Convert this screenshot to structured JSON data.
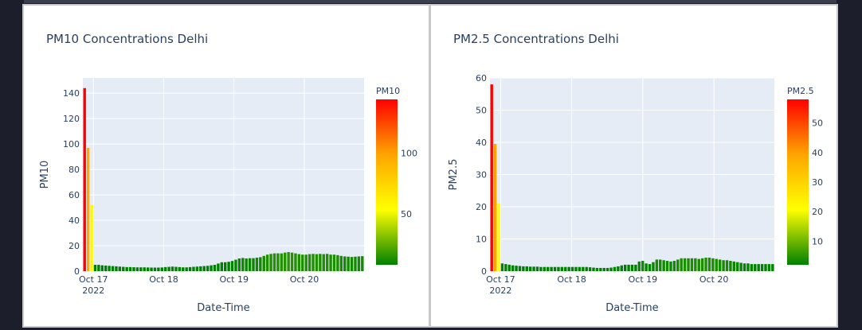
{
  "charts": [
    {
      "title": "PM10 Concentrations Delhi",
      "xlabel": "Date-Time",
      "ylabel": "PM10",
      "colorbar_title": "PM10",
      "y_ticks": [
        "0",
        "20",
        "40",
        "60",
        "80",
        "100",
        "120",
        "140"
      ],
      "x_ticks": [
        "Oct 17",
        "Oct 18",
        "Oct 19",
        "Oct 20"
      ],
      "x_year": "2022",
      "cb_ticks": [
        "50",
        "100"
      ]
    },
    {
      "title": "PM2.5 Concentrations Delhi",
      "xlabel": "Date-Time",
      "ylabel": "PM2.5",
      "colorbar_title": "PM2.5",
      "y_ticks": [
        "0",
        "10",
        "20",
        "30",
        "40",
        "50",
        "60"
      ],
      "x_ticks": [
        "Oct 17",
        "Oct 18",
        "Oct 19",
        "Oct 20"
      ],
      "x_year": "2022",
      "cb_ticks": [
        "10",
        "20",
        "30",
        "40",
        "50"
      ]
    }
  ],
  "chart_data": [
    {
      "type": "bar",
      "title": "PM10 Concentrations Delhi",
      "xlabel": "Date-Time",
      "ylabel": "PM10",
      "ylim": [
        0,
        152
      ],
      "x_range_days": [
        -0.15,
        3.85
      ],
      "x_origin": "2022-10-17",
      "colorscale": [
        "#008000",
        "#ffff00",
        "#ffa500",
        "#ff0000"
      ],
      "colorbar_range": [
        8,
        144
      ],
      "colorbar_ticks": [
        50,
        100
      ],
      "values": [
        144,
        97,
        52,
        5,
        5,
        4.6,
        4.4,
        4.2,
        4,
        3.8,
        3.6,
        3.4,
        3.2,
        3.2,
        3.1,
        3,
        3,
        3,
        2.9,
        2.8,
        2.8,
        2.8,
        2.9,
        3.2,
        3.4,
        3.6,
        3.4,
        3.2,
        3,
        3,
        3.2,
        3.4,
        3.6,
        3.8,
        4,
        4.2,
        4.6,
        5,
        6,
        7,
        7,
        7.4,
        8,
        9,
        10,
        10.4,
        10,
        10.2,
        10.2,
        10.6,
        11,
        12,
        13,
        13.6,
        14,
        14,
        14,
        14.6,
        15,
        14.6,
        14,
        13.4,
        13,
        13,
        13.4,
        13.6,
        13.4,
        13.6,
        13.4,
        13.6,
        13,
        13,
        12.6,
        12,
        11.6,
        11.4,
        11.2,
        11.4,
        11.6,
        11.8
      ]
    },
    {
      "type": "bar",
      "title": "PM2.5 Concentrations Delhi",
      "xlabel": "Date-Time",
      "ylabel": "PM2.5",
      "ylim": [
        0,
        60
      ],
      "x_range_days": [
        -0.15,
        3.85
      ],
      "x_origin": "2022-10-17",
      "colorscale": [
        "#008000",
        "#ffff00",
        "#ffa500",
        "#ff0000"
      ],
      "colorbar_range": [
        2,
        58
      ],
      "colorbar_ticks": [
        10,
        20,
        30,
        40,
        50
      ],
      "values": [
        58,
        39.5,
        21,
        2.4,
        2.2,
        2,
        1.8,
        1.7,
        1.6,
        1.5,
        1.5,
        1.4,
        1.4,
        1.4,
        1.3,
        1.3,
        1.3,
        1.3,
        1.3,
        1.3,
        1.3,
        1.3,
        1.3,
        1.3,
        1.3,
        1.3,
        1.3,
        1.3,
        1.2,
        1.1,
        1,
        1,
        1,
        1,
        1.1,
        1.3,
        1.5,
        1.8,
        2,
        2,
        2,
        2,
        3,
        3.2,
        2.4,
        2.2,
        2.8,
        3.6,
        3.6,
        3.4,
        3.2,
        3,
        3.2,
        3.6,
        4,
        4,
        4,
        4,
        4,
        3.8,
        4,
        4.2,
        4.2,
        4,
        3.8,
        3.6,
        3.4,
        3.4,
        3.2,
        3,
        2.8,
        2.6,
        2.4,
        2.4,
        2.2,
        2.2,
        2.2,
        2.2,
        2.2,
        2.2,
        2.2
      ]
    }
  ]
}
